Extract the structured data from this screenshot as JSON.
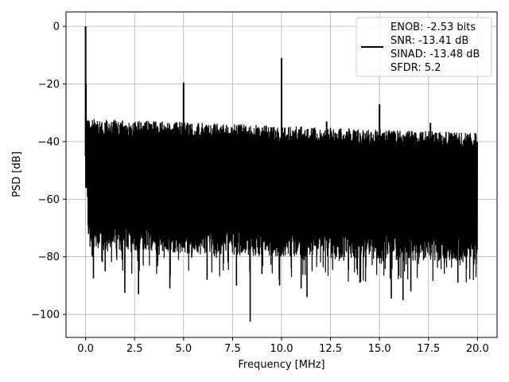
{
  "chart_data": {
    "type": "line",
    "title": "",
    "xlabel": "Frequency [MHz]",
    "ylabel": "PSD [dB]",
    "xlim": [
      -1.0,
      21.0
    ],
    "ylim": [
      -108,
      5
    ],
    "xticks": [
      0.0,
      2.5,
      5.0,
      7.5,
      10.0,
      12.5,
      15.0,
      17.5,
      20.0
    ],
    "xtick_labels": [
      "0.0",
      "2.5",
      "5.0",
      "7.5",
      "10.0",
      "12.5",
      "15.0",
      "17.5",
      "20.0"
    ],
    "yticks": [
      0,
      -20,
      -40,
      -60,
      -80,
      -100
    ],
    "ytick_labels": [
      "0",
      "−20",
      "−40",
      "−60",
      "−80",
      "−100"
    ],
    "grid": true,
    "legend_position": "top-right",
    "legend_lines": [
      "ENOB: -2.53 bits",
      "SNR: -13.41 dB",
      "SINAD: -13.48 dB",
      "SFDR: 5.2"
    ],
    "series_color": "#000000",
    "spikes": [
      {
        "x": 0.0,
        "y": 0
      },
      {
        "x": 0.02,
        "y": -20
      },
      {
        "x": 5.0,
        "y": -19.5
      },
      {
        "x": 10.0,
        "y": -11
      },
      {
        "x": 15.0,
        "y": -27
      },
      {
        "x": 12.3,
        "y": -33
      },
      {
        "x": 17.6,
        "y": -33.5
      }
    ],
    "noise_floor": {
      "x_range": [
        0.0,
        20.0
      ],
      "upper_start": -32,
      "upper_end": -37,
      "lower_start": -68,
      "lower_end": -72
    },
    "deep_dips": [
      {
        "x": 0.4,
        "y": -87.5
      },
      {
        "x": 1.0,
        "y": -85
      },
      {
        "x": 2.0,
        "y": -92.5
      },
      {
        "x": 2.7,
        "y": -93
      },
      {
        "x": 4.3,
        "y": -91
      },
      {
        "x": 6.2,
        "y": -88
      },
      {
        "x": 7.7,
        "y": -90
      },
      {
        "x": 8.4,
        "y": -102.5
      },
      {
        "x": 9.0,
        "y": -86
      },
      {
        "x": 9.9,
        "y": -90
      },
      {
        "x": 11.0,
        "y": -91
      },
      {
        "x": 11.3,
        "y": -94
      },
      {
        "x": 14.0,
        "y": -89
      },
      {
        "x": 15.6,
        "y": -94.5
      },
      {
        "x": 16.2,
        "y": -95
      },
      {
        "x": 16.6,
        "y": -92
      },
      {
        "x": 19.0,
        "y": -89
      }
    ]
  }
}
